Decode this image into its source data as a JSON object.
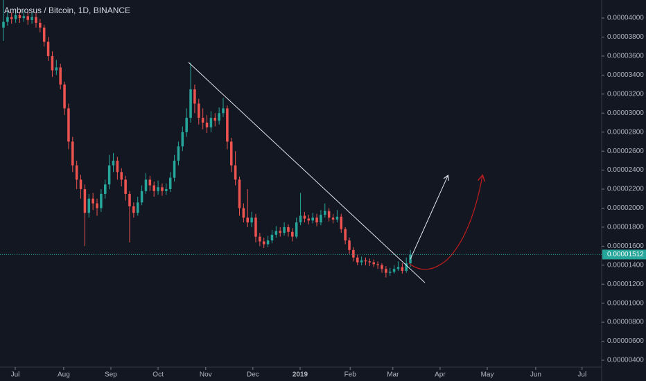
{
  "chart_data": {
    "type": "candlestick",
    "title": "Ambrosus / Bitcoin, 1D, BINANCE",
    "up_color": "#26a69a",
    "down_color": "#ef5350",
    "open": [
      3.9e-05,
      3.96e-05,
      4.01e-05,
      3.99e-05,
      4.03e-05,
      4e-05,
      4.02e-05,
      3.98e-05,
      4.01e-05,
      3.95e-05,
      3.9e-05,
      3.75e-05,
      3.6e-05,
      3.45e-05,
      3.48e-05,
      3.3e-05,
      3.05e-05,
      2.7e-05,
      2.45e-05,
      2.3e-05,
      2.2e-05,
      1.95e-05,
      2.1e-05,
      2.05e-05,
      2e-05,
      2.15e-05,
      2.25e-05,
      2.45e-05,
      2.5e-05,
      2.38e-05,
      2.3e-05,
      2.15e-05,
      2.02e-05,
      1.95e-05,
      2.06e-05,
      2.18e-05,
      2.3e-05,
      2.24e-05,
      2.18e-05,
      2.22e-05,
      2.18e-05,
      2.2e-05,
      2.32e-05,
      2.5e-05,
      2.65e-05,
      2.8e-05,
      2.95e-05,
      3.25e-05,
      3.1e-05,
      2.95e-05,
      2.9e-05,
      2.85e-05,
      2.95e-05,
      2.92e-05,
      3e-05,
      3.05e-05,
      2.7e-05,
      2.45e-05,
      2.3e-05,
      2e-05,
      1.9e-05,
      1.85e-05,
      1.9e-05,
      1.7e-05,
      1.65e-05,
      1.62e-05,
      1.66e-05,
      1.72e-05,
      1.76e-05,
      1.74e-05,
      1.8e-05,
      1.75e-05,
      1.7e-05,
      1.85e-05,
      1.92e-05,
      1.89e-05,
      1.87e-05,
      1.9e-05,
      1.85e-05,
      1.93e-05,
      1.97e-05,
      1.9e-05,
      1.88e-05,
      1.91e-05,
      1.78e-05,
      1.66e-05,
      1.56e-05,
      1.48e-05,
      1.43e-05,
      1.45e-05,
      1.44e-05,
      1.43e-05,
      1.41e-05,
      1.4e-05,
      1.36e-05,
      1.32e-05,
      1.33e-05,
      1.36e-05,
      1.38e-05,
      1.34e-05,
      1.42e-05
    ],
    "high": [
      4.25e-05,
      4.08e-05,
      4.06e-05,
      4.09e-05,
      4.07e-05,
      4.08e-05,
      4.06e-05,
      4.06e-05,
      4.05e-05,
      3.99e-05,
      3.93e-05,
      3.8e-05,
      3.65e-05,
      3.56e-05,
      3.52e-05,
      3.33e-05,
      3.1e-05,
      2.75e-05,
      2.5e-05,
      2.35e-05,
      2.25e-05,
      2.15e-05,
      2.16e-05,
      2.1e-05,
      2.2e-05,
      2.3e-05,
      2.56e-05,
      2.58e-05,
      2.54e-05,
      2.42e-05,
      2.34e-05,
      2.18e-05,
      2.06e-05,
      2.12e-05,
      2.24e-05,
      2.37e-05,
      2.34e-05,
      2.28e-05,
      2.29e-05,
      2.26e-05,
      2.26e-05,
      2.38e-05,
      2.56e-05,
      2.7e-05,
      2.86e-05,
      3.05e-05,
      3.53e-05,
      3.3e-05,
      3.15e-05,
      3.05e-05,
      2.98e-05,
      3.02e-05,
      3e-05,
      3.06e-05,
      3.16e-05,
      3.08e-05,
      2.74e-05,
      2.6e-05,
      2.33e-05,
      2.05e-05,
      2.2e-05,
      1.96e-05,
      1.94e-05,
      1.74e-05,
      1.69e-05,
      1.71e-05,
      1.77e-05,
      1.81e-05,
      1.8e-05,
      1.85e-05,
      1.83e-05,
      1.79e-05,
      1.9e-05,
      2.16e-05,
      1.96e-05,
      1.93e-05,
      1.95e-05,
      1.94e-05,
      1.98e-05,
      2.05e-05,
      2e-05,
      1.94e-05,
      1.98e-05,
      1.94e-05,
      1.8e-05,
      1.69e-05,
      1.59e-05,
      1.51e-05,
      1.49e-05,
      1.48e-05,
      1.47e-05,
      1.46e-05,
      1.44e-05,
      1.42e-05,
      1.39e-05,
      1.37e-05,
      1.4e-05,
      1.44e-05,
      1.42e-05,
      1.48e-05,
      1.56e-05
    ],
    "low": [
      3.76e-05,
      3.92e-05,
      3.94e-05,
      3.95e-05,
      3.95e-05,
      3.96e-05,
      3.93e-05,
      3.94e-05,
      3.9e-05,
      3.85e-05,
      3.7e-05,
      3.55e-05,
      3.38e-05,
      3.4e-05,
      3.25e-05,
      2.98e-05,
      2.62e-05,
      2.38e-05,
      2.2e-05,
      2.1e-05,
      1.6e-05,
      1.9e-05,
      1.98e-05,
      1.92e-05,
      1.96e-05,
      2.1e-05,
      2.2e-05,
      2.38e-05,
      2.3e-05,
      2.23e-05,
      2.08e-05,
      1.64e-05,
      1.9e-05,
      1.92e-05,
      2.03e-05,
      2.15e-05,
      2.18e-05,
      2.12e-05,
      2.14e-05,
      2.13e-05,
      2.14e-05,
      2.17e-05,
      2.28e-05,
      2.45e-05,
      2.6e-05,
      2.75e-05,
      2.9e-05,
      3e-05,
      2.88e-05,
      2.83e-05,
      2.79e-05,
      2.8e-05,
      2.86e-05,
      2.88e-05,
      2.96e-05,
      2.62e-05,
      2.38e-05,
      2.24e-05,
      1.92e-05,
      1.85e-05,
      1.8e-05,
      1.8e-05,
      1.64e-05,
      1.6e-05,
      1.58e-05,
      1.59e-05,
      1.63e-05,
      1.69e-05,
      1.7e-05,
      1.71e-05,
      1.7e-05,
      1.65e-05,
      1.68e-05,
      1.82e-05,
      1.85e-05,
      1.83e-05,
      1.84e-05,
      1.81e-05,
      1.82e-05,
      1.9e-05,
      1.86e-05,
      1.84e-05,
      1.85e-05,
      1.74e-05,
      1.62e-05,
      1.52e-05,
      1.44e-05,
      1.4e-05,
      1.4e-05,
      1.4e-05,
      1.39e-05,
      1.38e-05,
      1.36e-05,
      1.32e-05,
      1.27e-05,
      1.29e-05,
      1.31e-05,
      1.34e-05,
      1.31e-05,
      1.32e-05,
      1.38e-05
    ],
    "close": [
      3.96e-05,
      4.01e-05,
      3.99e-05,
      4.03e-05,
      4e-05,
      4.02e-05,
      3.98e-05,
      4.01e-05,
      3.95e-05,
      3.9e-05,
      3.75e-05,
      3.6e-05,
      3.45e-05,
      3.48e-05,
      3.3e-05,
      3.05e-05,
      2.7e-05,
      2.45e-05,
      2.3e-05,
      2.2e-05,
      1.95e-05,
      2.1e-05,
      2.05e-05,
      2e-05,
      2.15e-05,
      2.25e-05,
      2.45e-05,
      2.5e-05,
      2.38e-05,
      2.3e-05,
      2.15e-05,
      2.02e-05,
      1.95e-05,
      2.06e-05,
      2.18e-05,
      2.3e-05,
      2.24e-05,
      2.18e-05,
      2.22e-05,
      2.18e-05,
      2.2e-05,
      2.32e-05,
      2.5e-05,
      2.65e-05,
      2.8e-05,
      2.95e-05,
      3.25e-05,
      3.1e-05,
      2.95e-05,
      2.9e-05,
      2.85e-05,
      2.95e-05,
      2.92e-05,
      3e-05,
      3.05e-05,
      2.7e-05,
      2.45e-05,
      2.3e-05,
      2e-05,
      1.9e-05,
      1.85e-05,
      1.9e-05,
      1.7e-05,
      1.65e-05,
      1.62e-05,
      1.66e-05,
      1.72e-05,
      1.76e-05,
      1.74e-05,
      1.8e-05,
      1.75e-05,
      1.7e-05,
      1.85e-05,
      1.92e-05,
      1.89e-05,
      1.87e-05,
      1.9e-05,
      1.85e-05,
      1.93e-05,
      1.97e-05,
      1.9e-05,
      1.88e-05,
      1.91e-05,
      1.78e-05,
      1.66e-05,
      1.56e-05,
      1.48e-05,
      1.43e-05,
      1.45e-05,
      1.44e-05,
      1.43e-05,
      1.41e-05,
      1.4e-05,
      1.36e-05,
      1.32e-05,
      1.33e-05,
      1.36e-05,
      1.38e-05,
      1.34e-05,
      1.42e-05,
      1.512e-05
    ],
    "last_price_label": "0.00001512",
    "xlim": [
      -0.85,
      147.0
    ],
    "xticks": [
      {
        "value": 2.9,
        "label": "Jul"
      },
      {
        "value": 14.8,
        "label": "Aug"
      },
      {
        "value": 26.4,
        "label": "Sep"
      },
      {
        "value": 38.0,
        "label": "Oct"
      },
      {
        "value": 49.7,
        "label": "Nov"
      },
      {
        "value": 61.3,
        "label": "Dec"
      },
      {
        "value": 72.9,
        "label": "2019"
      },
      {
        "value": 85.2,
        "label": "Feb"
      },
      {
        "value": 95.7,
        "label": "Mar"
      },
      {
        "value": 107.3,
        "label": "Apr"
      },
      {
        "value": 118.9,
        "label": "May"
      },
      {
        "value": 130.8,
        "label": "Jun"
      },
      {
        "value": 142.2,
        "label": "Jul"
      }
    ],
    "ylim": [
      3.27e-06,
      4.19e-05
    ],
    "yticks": [
      {
        "value": 4e-06,
        "label": "0.00000400"
      },
      {
        "value": 6e-06,
        "label": "0.00000600"
      },
      {
        "value": 8e-06,
        "label": "0.00000800"
      },
      {
        "value": 1e-05,
        "label": "0.00001000"
      },
      {
        "value": 1.2e-05,
        "label": "0.00001200"
      },
      {
        "value": 1.4e-05,
        "label": "0.00001400"
      },
      {
        "value": 1.6e-05,
        "label": "0.00001600"
      },
      {
        "value": 1.8e-05,
        "label": "0.00001800"
      },
      {
        "value": 2e-05,
        "label": "0.00002000"
      },
      {
        "value": 2.2e-05,
        "label": "0.00002200"
      },
      {
        "value": 2.4e-05,
        "label": "0.00002400"
      },
      {
        "value": 2.6e-05,
        "label": "0.00002600"
      },
      {
        "value": 2.8e-05,
        "label": "0.00002800"
      },
      {
        "value": 3e-05,
        "label": "0.00003000"
      },
      {
        "value": 3.2e-05,
        "label": "0.00003200"
      },
      {
        "value": 3.4e-05,
        "label": "0.00003400"
      },
      {
        "value": 3.6e-05,
        "label": "0.00003600"
      },
      {
        "value": 3.8e-05,
        "label": "0.00003800"
      },
      {
        "value": 4e-05,
        "label": "0.00004000"
      }
    ]
  }
}
